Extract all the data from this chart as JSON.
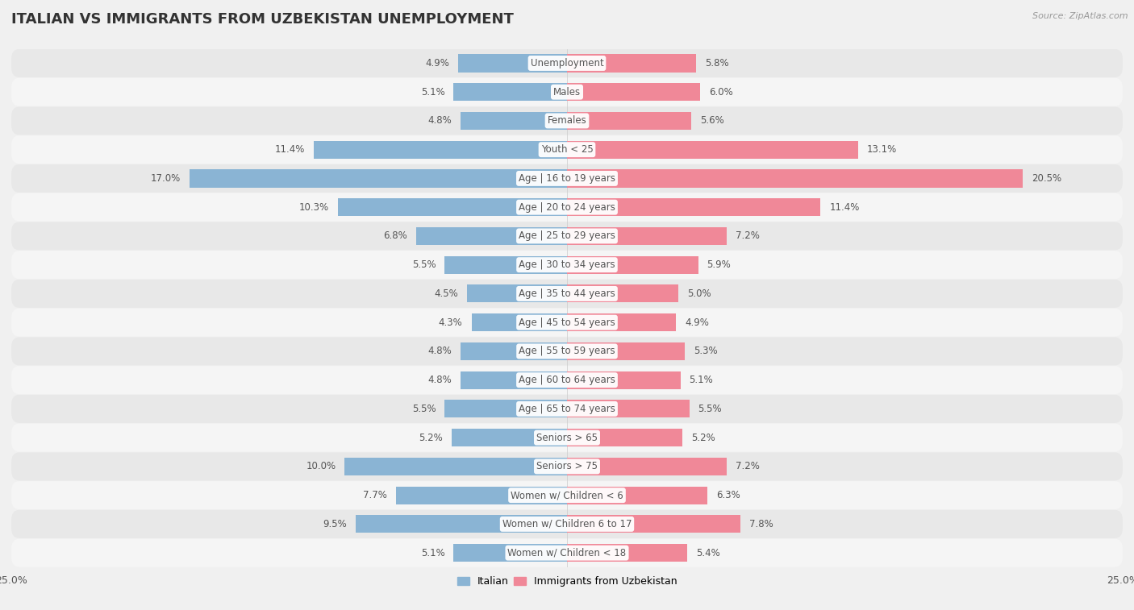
{
  "title": "ITALIAN VS IMMIGRANTS FROM UZBEKISTAN UNEMPLOYMENT",
  "source": "Source: ZipAtlas.com",
  "categories": [
    "Unemployment",
    "Males",
    "Females",
    "Youth < 25",
    "Age | 16 to 19 years",
    "Age | 20 to 24 years",
    "Age | 25 to 29 years",
    "Age | 30 to 34 years",
    "Age | 35 to 44 years",
    "Age | 45 to 54 years",
    "Age | 55 to 59 years",
    "Age | 60 to 64 years",
    "Age | 65 to 74 years",
    "Seniors > 65",
    "Seniors > 75",
    "Women w/ Children < 6",
    "Women w/ Children 6 to 17",
    "Women w/ Children < 18"
  ],
  "italian": [
    4.9,
    5.1,
    4.8,
    11.4,
    17.0,
    10.3,
    6.8,
    5.5,
    4.5,
    4.3,
    4.8,
    4.8,
    5.5,
    5.2,
    10.0,
    7.7,
    9.5,
    5.1
  ],
  "uzbekistan": [
    5.8,
    6.0,
    5.6,
    13.1,
    20.5,
    11.4,
    7.2,
    5.9,
    5.0,
    4.9,
    5.3,
    5.1,
    5.5,
    5.2,
    7.2,
    6.3,
    7.8,
    5.4
  ],
  "italian_color": "#8ab4d4",
  "uzbekistan_color": "#f08898",
  "label_color": "#555555",
  "background_color": "#f0f0f0",
  "row_bg_odd": "#e8e8e8",
  "row_bg_even": "#f5f5f5",
  "axis_max": 25.0,
  "bar_height": 0.62,
  "title_fontsize": 13,
  "label_fontsize": 9,
  "value_fontsize": 8.5,
  "legend_italian": "Italian",
  "legend_uzbekistan": "Immigrants from Uzbekistan"
}
